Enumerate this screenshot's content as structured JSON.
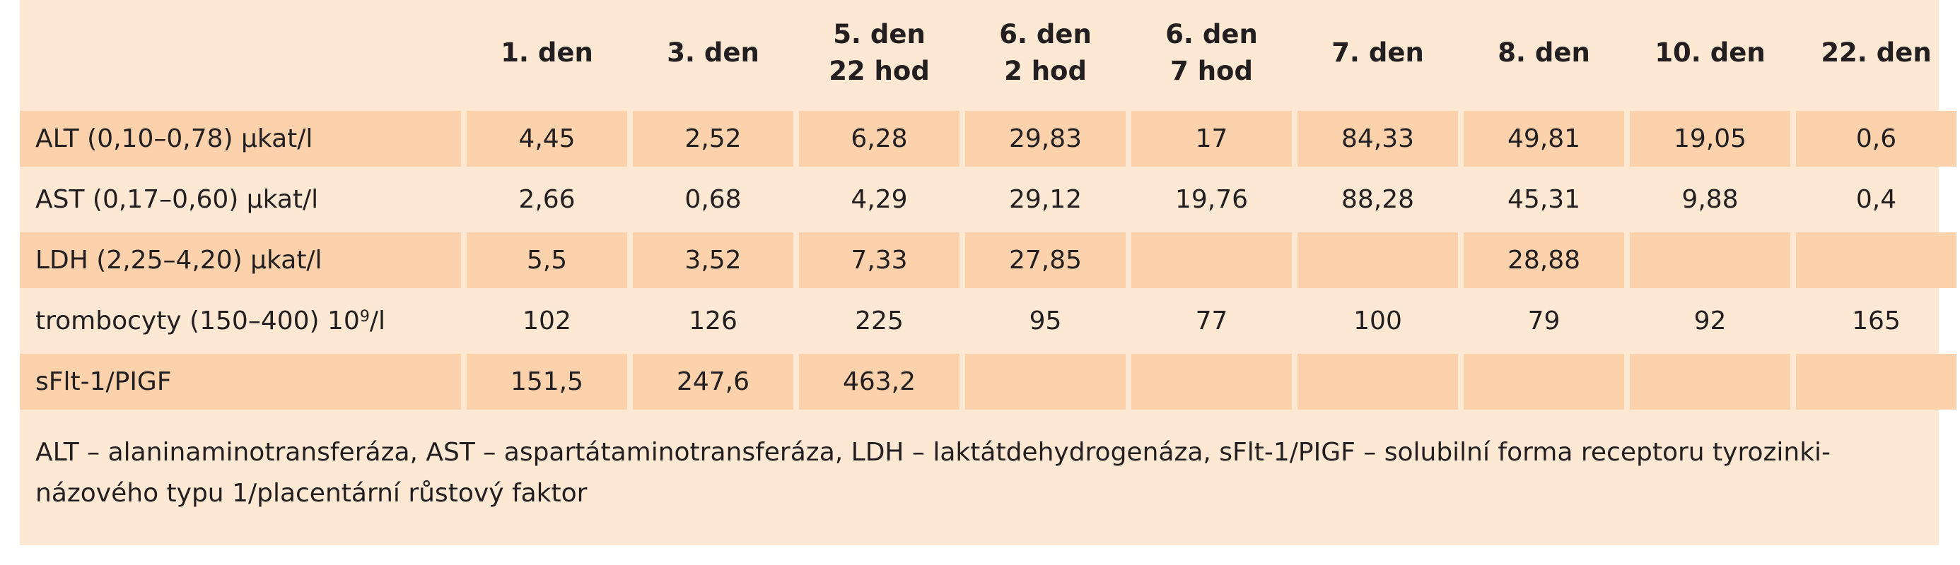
{
  "table": {
    "columns": [
      {
        "line1": "1. den",
        "line2": ""
      },
      {
        "line1": "3. den",
        "line2": ""
      },
      {
        "line1": "5. den",
        "line2": "22 hod"
      },
      {
        "line1": "6. den",
        "line2": "2 hod"
      },
      {
        "line1": "6. den",
        "line2": "7 hod"
      },
      {
        "line1": "7. den",
        "line2": ""
      },
      {
        "line1": "8. den",
        "line2": ""
      },
      {
        "line1": "10. den",
        "line2": ""
      },
      {
        "line1": "22. den",
        "line2": ""
      }
    ],
    "rows": [
      {
        "label": "ALT (0,10–0,78) µkat/l",
        "values": [
          "4,45",
          "2,52",
          "6,28",
          "29,83",
          "17",
          "84,33",
          "49,81",
          "19,05",
          "0,6"
        ]
      },
      {
        "label": "AST (0,17–0,60) µkat/l",
        "values": [
          "2,66",
          "0,68",
          "4,29",
          "29,12",
          "19,76",
          "88,28",
          "45,31",
          "9,88",
          "0,4"
        ]
      },
      {
        "label": "LDH (2,25–4,20) µkat/l",
        "values": [
          "5,5",
          "3,52",
          "7,33",
          "27,85",
          "",
          "",
          "28,88",
          "",
          ""
        ]
      },
      {
        "label_main": "trombocyty (150–400) 10",
        "label_sup": "9",
        "label_tail": "/l",
        "values": [
          "102",
          "126",
          "225",
          "95",
          "77",
          "100",
          "79",
          "92",
          "165"
        ]
      },
      {
        "label": "sFlt-1/PIGF",
        "values": [
          "151,5",
          "247,6",
          "463,2",
          "",
          "",
          "",
          "",
          "",
          ""
        ]
      }
    ]
  },
  "footnote": {
    "line1": "ALT – alaninaminotransferáza, AST – aspartátaminotransferáza, LDH – laktátdehydrogenáza, sFlt-1/PIGF – solubilní forma receptoru tyrozinki-",
    "line2": "názového typu 1/placentární růstový faktor"
  }
}
